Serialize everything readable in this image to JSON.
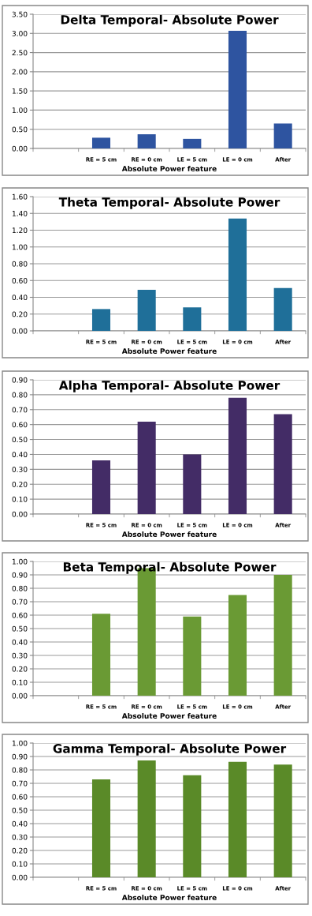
{
  "chart_data": [
    {
      "type": "bar",
      "title": "Delta Temporal- Absolute Power",
      "xlabel": "Absolute Power feature",
      "categories": [
        null,
        "RE = 5 cm",
        "RE = 0 cm",
        "LE = 5 cm",
        "LE = 0 cm",
        "After"
      ],
      "values": [
        null,
        0.28,
        0.37,
        0.25,
        3.07,
        0.65
      ],
      "color": "#2e54a0",
      "ylim": [
        0,
        3.5
      ],
      "yticks": [
        {
          "value": 0,
          "label": "0.00"
        },
        {
          "value": 0.5,
          "label": "0.50"
        },
        {
          "value": 1,
          "label": "1.00"
        },
        {
          "value": 1.5,
          "label": "1.50"
        },
        {
          "value": 2,
          "label": "2.00"
        },
        {
          "value": 2.5,
          "label": "2.50"
        },
        {
          "value": 3,
          "label": "3.00"
        },
        {
          "value": 3.5,
          "label": "3.50"
        }
      ],
      "grid": "y"
    },
    {
      "type": "bar",
      "title": "Theta Temporal- Absolute Power",
      "xlabel": "Absolute Power feature",
      "categories": [
        null,
        "RE = 5 cm",
        "RE = 0 cm",
        "LE = 5 cm",
        "LE = 0 cm",
        "After"
      ],
      "values": [
        null,
        0.26,
        0.49,
        0.28,
        1.34,
        0.51
      ],
      "color": "#1f6f99",
      "ylim": [
        0,
        1.6
      ],
      "yticks": [
        {
          "value": 0,
          "label": "0.00"
        },
        {
          "value": 0.2,
          "label": "0.20"
        },
        {
          "value": 0.4,
          "label": "0.40"
        },
        {
          "value": 0.6,
          "label": "0.60"
        },
        {
          "value": 0.8,
          "label": "0.80"
        },
        {
          "value": 1,
          "label": "1.00"
        },
        {
          "value": 1.2,
          "label": "1.20"
        },
        {
          "value": 1.4,
          "label": "1.40"
        },
        {
          "value": 1.6,
          "label": "1.60"
        }
      ],
      "grid": "y"
    },
    {
      "type": "bar",
      "title": "Alpha Temporal- Absolute Power",
      "xlabel": "Absolute Power feature",
      "categories": [
        null,
        "RE = 5 cm",
        "RE = 0 cm",
        "LE = 5 cm",
        "LE = 0 cm",
        "After"
      ],
      "values": [
        null,
        0.36,
        0.62,
        0.4,
        0.78,
        0.67
      ],
      "color": "#432c66",
      "ylim": [
        0,
        0.9
      ],
      "yticks": [
        {
          "value": 0,
          "label": "0.00"
        },
        {
          "value": 0.1,
          "label": "0.10"
        },
        {
          "value": 0.2,
          "label": "0.20"
        },
        {
          "value": 0.3,
          "label": "0.30"
        },
        {
          "value": 0.4,
          "label": "0.40"
        },
        {
          "value": 0.5,
          "label": "0.50"
        },
        {
          "value": 0.6,
          "label": "0.60"
        },
        {
          "value": 0.7,
          "label": "0.70"
        },
        {
          "value": 0.8,
          "label": "0.80"
        },
        {
          "value": 0.9,
          "label": "0.90"
        }
      ],
      "grid": "y"
    },
    {
      "type": "bar",
      "title": "Beta Temporal- Absolute Power",
      "xlabel": "Absolute Power feature",
      "categories": [
        null,
        "RE = 5 cm",
        "RE = 0 cm",
        "LE = 5 cm",
        "LE = 0 cm",
        "After"
      ],
      "values": [
        null,
        0.61,
        0.95,
        0.59,
        0.75,
        0.9
      ],
      "color": "#6a9a34",
      "ylim": [
        0,
        1.0
      ],
      "yticks": [
        {
          "value": 0,
          "label": "0.00"
        },
        {
          "value": 0.1,
          "label": "0.10"
        },
        {
          "value": 0.2,
          "label": "0.20"
        },
        {
          "value": 0.3,
          "label": "0.30"
        },
        {
          "value": 0.4,
          "label": "0.40"
        },
        {
          "value": 0.5,
          "label": "0.50"
        },
        {
          "value": 0.6,
          "label": "0.60"
        },
        {
          "value": 0.7,
          "label": "0.70"
        },
        {
          "value": 0.8,
          "label": "0.80"
        },
        {
          "value": 0.9,
          "label": "0.90"
        },
        {
          "value": 1,
          "label": "1.00"
        }
      ],
      "grid": "y"
    },
    {
      "type": "bar",
      "title": "Gamma Temporal- Absolute Power",
      "xlabel": "Absolute Power feature",
      "categories": [
        null,
        "RE = 5 cm",
        "RE = 0 cm",
        "LE = 5 cm",
        "LE = 0 cm",
        "After"
      ],
      "values": [
        null,
        0.73,
        0.87,
        0.76,
        0.86,
        0.84
      ],
      "color": "#5a8a28",
      "ylim": [
        0,
        1.0
      ],
      "yticks": [
        {
          "value": 0,
          "label": "0.00"
        },
        {
          "value": 0.1,
          "label": "0.10"
        },
        {
          "value": 0.2,
          "label": "0.20"
        },
        {
          "value": 0.3,
          "label": "0.30"
        },
        {
          "value": 0.4,
          "label": "0.40"
        },
        {
          "value": 0.5,
          "label": "0.50"
        },
        {
          "value": 0.6,
          "label": "0.60"
        },
        {
          "value": 0.7,
          "label": "0.70"
        },
        {
          "value": 0.8,
          "label": "0.80"
        },
        {
          "value": 0.9,
          "label": "0.90"
        },
        {
          "value": 1,
          "label": "1.00"
        }
      ],
      "grid": "y"
    }
  ]
}
